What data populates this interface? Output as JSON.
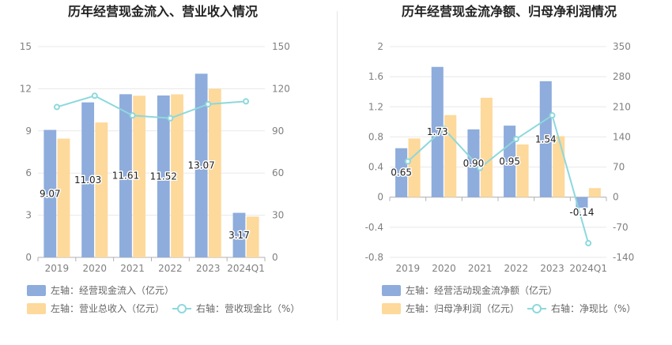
{
  "colors": {
    "primary_bar": "#8eacdc",
    "secondary_bar": "#fdd99b",
    "line": "#8dd8dc",
    "grid": "#e8e8e8",
    "tick_text": "#808080"
  },
  "chart_data": [
    {
      "type": "bar",
      "title": "历年经营现金流入、营业收入情况",
      "categories": [
        "2019",
        "2020",
        "2021",
        "2022",
        "2023",
        "2024Q1"
      ],
      "y_left": {
        "min": 0,
        "max": 15,
        "ticks": [
          "0",
          "3",
          "6",
          "9",
          "12",
          "15"
        ]
      },
      "y_right": {
        "min": 0,
        "max": 150,
        "ticks": [
          "0",
          "30",
          "60",
          "90",
          "120",
          "150"
        ]
      },
      "grid": true,
      "legend_position": "bottom-left",
      "series": [
        {
          "name": "左轴：经营现金流入（亿元）",
          "kind": "bar",
          "axis": "left",
          "color": "#8eacdc",
          "values": [
            9.07,
            11.03,
            11.61,
            11.52,
            13.07,
            3.17
          ],
          "labels": [
            "9.07",
            "11.03",
            "11.61",
            "11.52",
            "13.07",
            "3.17"
          ]
        },
        {
          "name": "左轴：营业总收入（亿元）",
          "kind": "bar",
          "axis": "left",
          "color": "#fdd99b",
          "values": [
            8.45,
            9.6,
            11.5,
            11.6,
            12.0,
            2.9
          ]
        },
        {
          "name": "右轴：营收现金比（%）",
          "kind": "line",
          "axis": "right",
          "color": "#8dd8dc",
          "values": [
            107,
            115,
            101,
            99,
            109,
            111
          ]
        }
      ]
    },
    {
      "type": "bar",
      "title": "历年经营现金流净额、归母净利润情况",
      "categories": [
        "2019",
        "2020",
        "2021",
        "2022",
        "2023",
        "2024Q1"
      ],
      "y_left": {
        "min": -0.8,
        "max": 2,
        "ticks": [
          "-0.8",
          "-0.4",
          "0",
          "0.4",
          "0.8",
          "1.2",
          "1.6",
          "2"
        ]
      },
      "y_right": {
        "min": -140,
        "max": 350,
        "ticks": [
          "-140",
          "-70",
          "0",
          "70",
          "140",
          "210",
          "280",
          "350"
        ]
      },
      "grid": true,
      "legend_position": "bottom-left",
      "series": [
        {
          "name": "左轴：经营活动现金流净额（亿元）",
          "kind": "bar",
          "axis": "left",
          "color": "#8eacdc",
          "values": [
            0.65,
            1.73,
            0.9,
            0.95,
            1.54,
            -0.14
          ],
          "labels": [
            "0.65",
            "1.73",
            "0.90",
            "0.95",
            "1.54",
            "-0.14"
          ]
        },
        {
          "name": "左轴：归母净利润（亿元）",
          "kind": "bar",
          "axis": "left",
          "color": "#fdd99b",
          "values": [
            0.78,
            1.09,
            1.32,
            0.7,
            0.81,
            0.12
          ]
        },
        {
          "name": "右轴：净现比（%）",
          "kind": "line",
          "axis": "right",
          "color": "#8dd8dc",
          "values": [
            83,
            159,
            68,
            135,
            190,
            -107
          ]
        }
      ]
    }
  ]
}
